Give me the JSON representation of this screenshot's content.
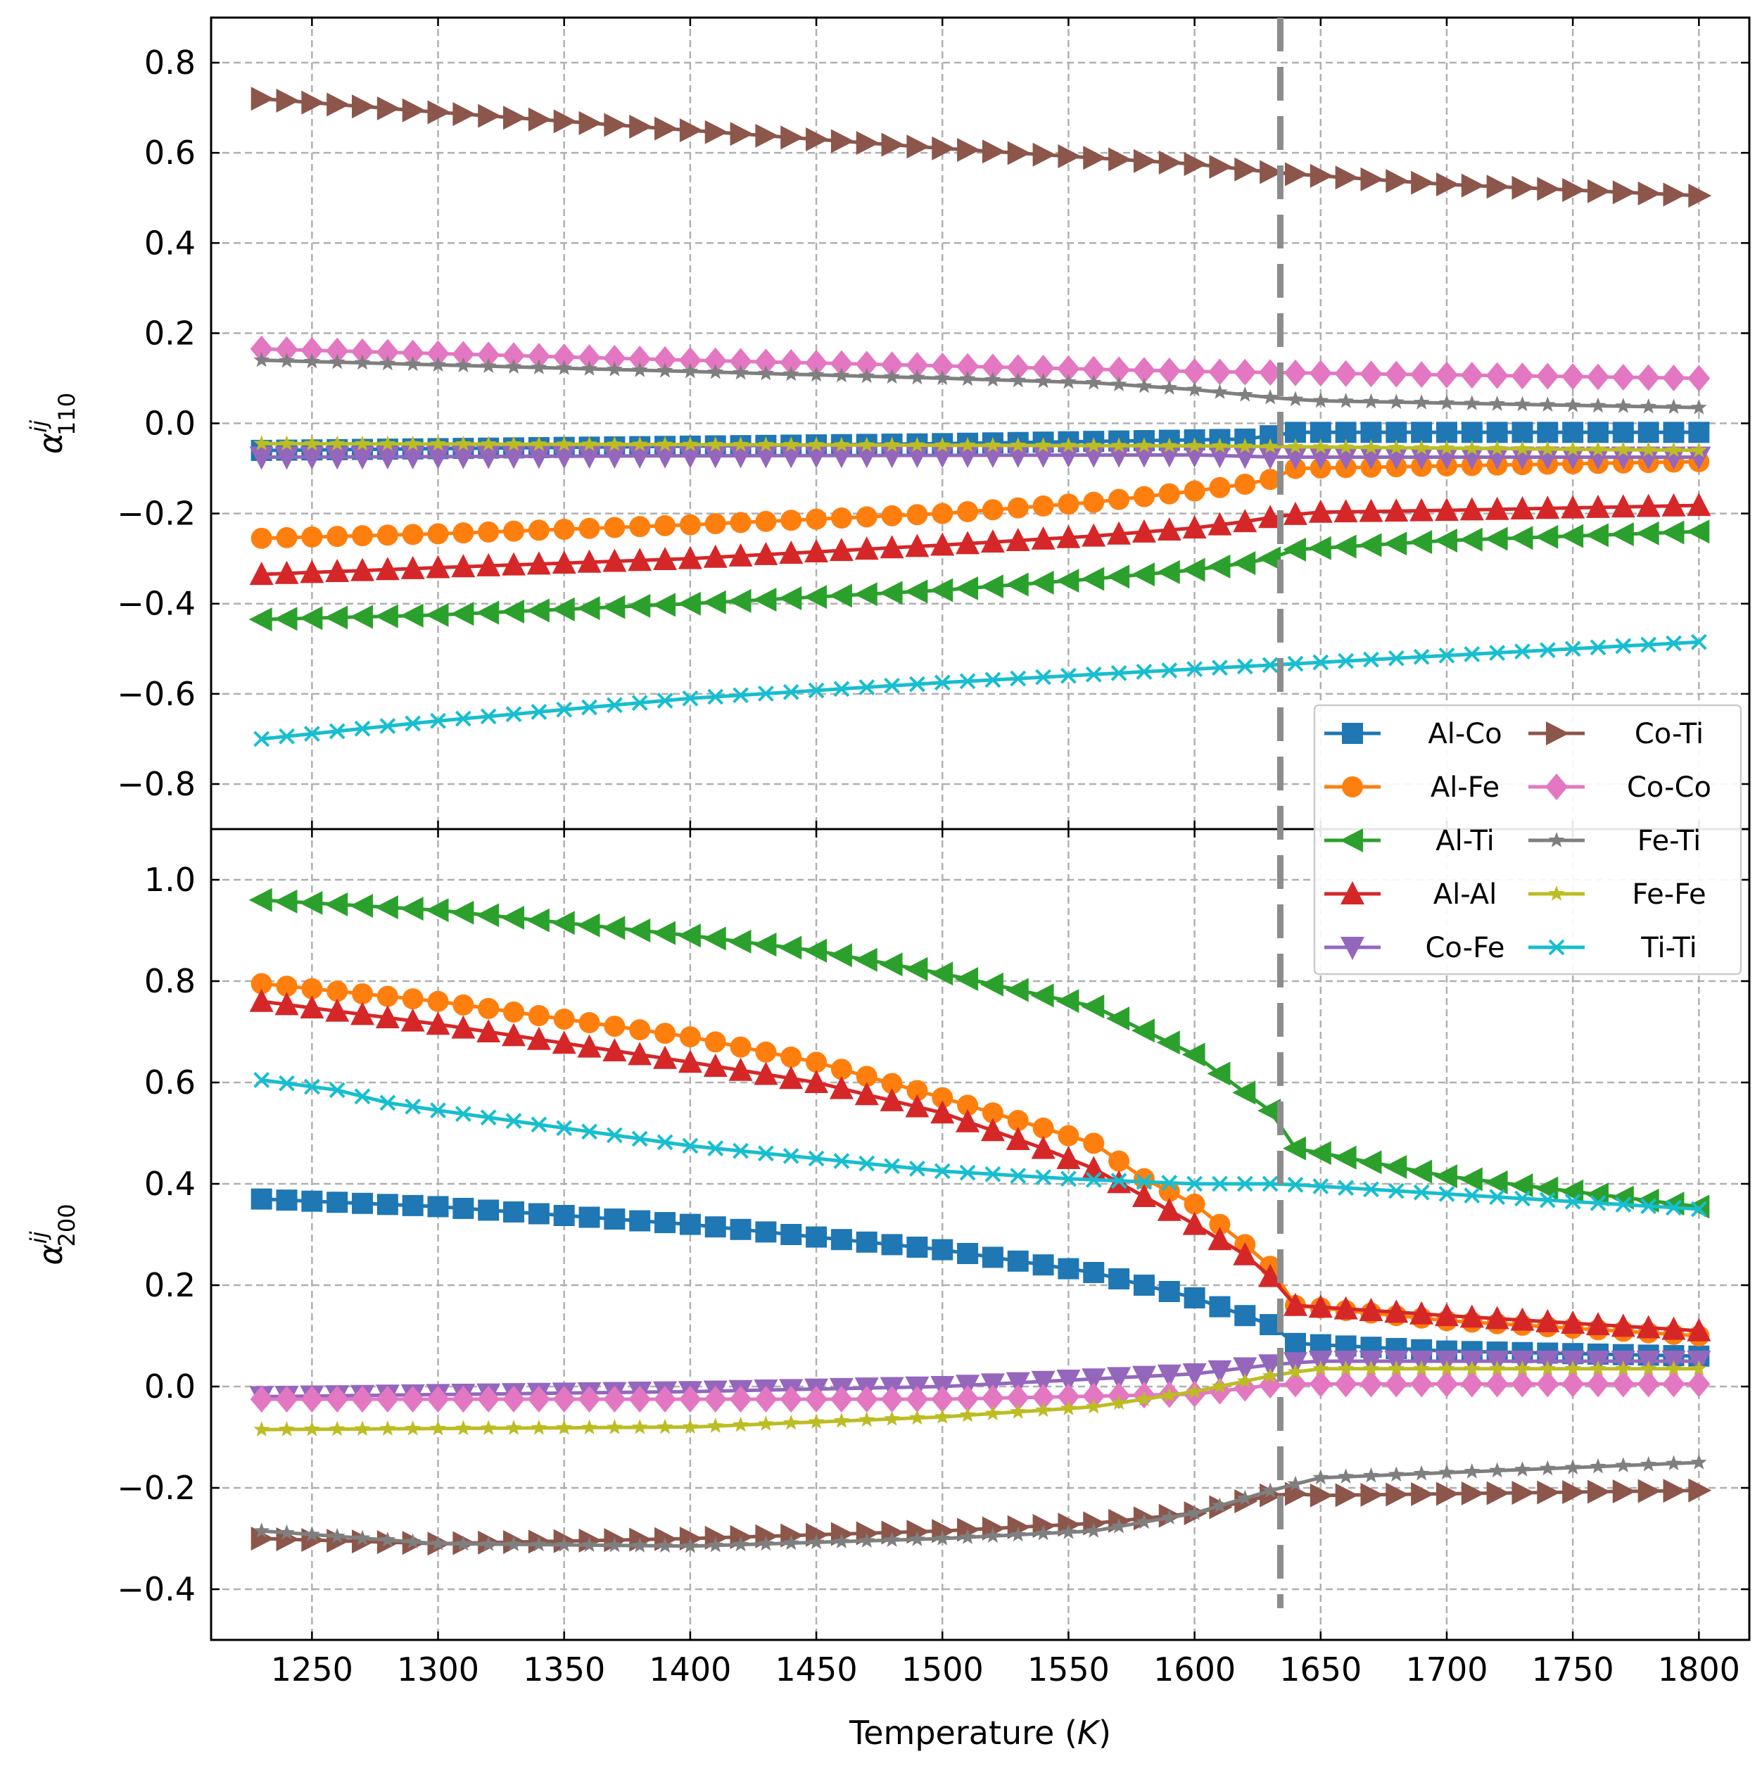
{
  "chart_data": [
    {
      "type": "line",
      "panel": "top",
      "ylabel_symbol": "α",
      "ylabel_sup": "ij",
      "ylabel_sub": "110",
      "xlim": [
        1210,
        1820
      ],
      "ylim": [
        -0.9,
        0.9
      ],
      "yticks": [
        "0.8",
        "0.6",
        "0.4",
        "0.2",
        "0.0",
        "−0.2",
        "−0.4",
        "−0.6",
        "−0.8"
      ],
      "ytick_values": [
        0.8,
        0.6,
        0.4,
        0.2,
        0.0,
        -0.2,
        -0.4,
        -0.6,
        -0.8
      ],
      "grid": true,
      "legend_placement": "bottom-right",
      "vline_x": 1634,
      "series": [
        {
          "name": "Al-Co",
          "points": [
            [
              1230,
              -0.06
            ],
            [
              1500,
              -0.045
            ],
            [
              1620,
              -0.035
            ],
            [
              1640,
              -0.02
            ],
            [
              1800,
              -0.02
            ]
          ]
        },
        {
          "name": "Al-Fe",
          "points": [
            [
              1230,
              -0.255
            ],
            [
              1300,
              -0.245
            ],
            [
              1400,
              -0.225
            ],
            [
              1500,
              -0.2
            ],
            [
              1560,
              -0.175
            ],
            [
              1600,
              -0.15
            ],
            [
              1620,
              -0.135
            ],
            [
              1634,
              -0.12
            ],
            [
              1640,
              -0.1
            ],
            [
              1800,
              -0.085
            ]
          ]
        },
        {
          "name": "Al-Ti",
          "points": [
            [
              1230,
              -0.435
            ],
            [
              1300,
              -0.425
            ],
            [
              1400,
              -0.4
            ],
            [
              1500,
              -0.37
            ],
            [
              1560,
              -0.345
            ],
            [
              1600,
              -0.325
            ],
            [
              1620,
              -0.31
            ],
            [
              1634,
              -0.295
            ],
            [
              1640,
              -0.28
            ],
            [
              1700,
              -0.26
            ],
            [
              1800,
              -0.24
            ]
          ]
        },
        {
          "name": "Al-Al",
          "points": [
            [
              1230,
              -0.335
            ],
            [
              1300,
              -0.32
            ],
            [
              1400,
              -0.3
            ],
            [
              1500,
              -0.27
            ],
            [
              1560,
              -0.25
            ],
            [
              1600,
              -0.232
            ],
            [
              1620,
              -0.218
            ],
            [
              1634,
              -0.205
            ],
            [
              1650,
              -0.197
            ],
            [
              1700,
              -0.193
            ],
            [
              1800,
              -0.182
            ]
          ]
        },
        {
          "name": "Co-Fe",
          "points": [
            [
              1230,
              -0.075
            ],
            [
              1400,
              -0.072
            ],
            [
              1600,
              -0.07
            ],
            [
              1634,
              -0.075
            ],
            [
              1700,
              -0.075
            ],
            [
              1800,
              -0.075
            ]
          ]
        },
        {
          "name": "Co-Ti",
          "points": [
            [
              1230,
              0.72
            ],
            [
              1300,
              0.69
            ],
            [
              1400,
              0.65
            ],
            [
              1500,
              0.61
            ],
            [
              1600,
              0.575
            ],
            [
              1634,
              0.555
            ],
            [
              1700,
              0.53
            ],
            [
              1800,
              0.505
            ]
          ]
        },
        {
          "name": "Co-Co",
          "points": [
            [
              1230,
              0.165
            ],
            [
              1400,
              0.14
            ],
            [
              1600,
              0.115
            ],
            [
              1800,
              0.1
            ]
          ]
        },
        {
          "name": "Fe-Ti",
          "points": [
            [
              1230,
              0.14
            ],
            [
              1400,
              0.115
            ],
            [
              1500,
              0.1
            ],
            [
              1560,
              0.09
            ],
            [
              1600,
              0.075
            ],
            [
              1634,
              0.055
            ],
            [
              1650,
              0.05
            ],
            [
              1800,
              0.035
            ]
          ]
        },
        {
          "name": "Fe-Fe",
          "points": [
            [
              1230,
              -0.045
            ],
            [
              1400,
              -0.047
            ],
            [
              1600,
              -0.05
            ],
            [
              1800,
              -0.06
            ]
          ]
        },
        {
          "name": "Ti-Ti",
          "points": [
            [
              1230,
              -0.7
            ],
            [
              1300,
              -0.66
            ],
            [
              1400,
              -0.61
            ],
            [
              1500,
              -0.575
            ],
            [
              1600,
              -0.545
            ],
            [
              1634,
              -0.535
            ],
            [
              1700,
              -0.515
            ],
            [
              1800,
              -0.485
            ]
          ]
        }
      ]
    },
    {
      "type": "line",
      "panel": "bottom",
      "ylabel_symbol": "α",
      "ylabel_sup": "ij",
      "ylabel_sub": "200",
      "xlabel_main": "Temperature (",
      "xlabel_unit": "K",
      "xlabel_close": ")",
      "xlim": [
        1210,
        1820
      ],
      "ylim": [
        -0.5,
        1.1
      ],
      "xticks": [
        "1250",
        "1300",
        "1350",
        "1400",
        "1450",
        "1500",
        "1550",
        "1600",
        "1650",
        "1700",
        "1750",
        "1800"
      ],
      "xtick_values": [
        1250,
        1300,
        1350,
        1400,
        1450,
        1500,
        1550,
        1600,
        1650,
        1700,
        1750,
        1800
      ],
      "yticks": [
        "1.0",
        "0.8",
        "0.6",
        "0.4",
        "0.2",
        "0.0",
        "−0.2",
        "−0.4"
      ],
      "ytick_values": [
        1.0,
        0.8,
        0.6,
        0.4,
        0.2,
        0.0,
        -0.2,
        -0.4
      ],
      "grid": true,
      "vline_x": 1634,
      "series": [
        {
          "name": "Al-Co",
          "points": [
            [
              1230,
              0.37
            ],
            [
              1300,
              0.355
            ],
            [
              1400,
              0.32
            ],
            [
              1500,
              0.27
            ],
            [
              1560,
              0.225
            ],
            [
              1600,
              0.175
            ],
            [
              1620,
              0.14
            ],
            [
              1634,
              0.115
            ],
            [
              1640,
              0.085
            ],
            [
              1700,
              0.07
            ],
            [
              1800,
              0.06
            ]
          ]
        },
        {
          "name": "Al-Fe",
          "points": [
            [
              1230,
              0.795
            ],
            [
              1300,
              0.76
            ],
            [
              1400,
              0.69
            ],
            [
              1450,
              0.64
            ],
            [
              1500,
              0.57
            ],
            [
              1540,
              0.51
            ],
            [
              1560,
              0.48
            ],
            [
              1580,
              0.41
            ],
            [
              1600,
              0.36
            ],
            [
              1620,
              0.28
            ],
            [
              1634,
              0.22
            ],
            [
              1640,
              0.16
            ],
            [
              1700,
              0.13
            ],
            [
              1800,
              0.1
            ]
          ]
        },
        {
          "name": "Al-Ti",
          "points": [
            [
              1230,
              0.96
            ],
            [
              1300,
              0.94
            ],
            [
              1400,
              0.89
            ],
            [
              1450,
              0.86
            ],
            [
              1500,
              0.815
            ],
            [
              1560,
              0.75
            ],
            [
              1600,
              0.655
            ],
            [
              1620,
              0.58
            ],
            [
              1634,
              0.53
            ],
            [
              1640,
              0.47
            ],
            [
              1700,
              0.415
            ],
            [
              1750,
              0.385
            ],
            [
              1800,
              0.355
            ]
          ]
        },
        {
          "name": "Al-Al",
          "points": [
            [
              1230,
              0.76
            ],
            [
              1300,
              0.715
            ],
            [
              1400,
              0.64
            ],
            [
              1450,
              0.6
            ],
            [
              1500,
              0.54
            ],
            [
              1540,
              0.47
            ],
            [
              1560,
              0.43
            ],
            [
              1600,
              0.32
            ],
            [
              1620,
              0.26
            ],
            [
              1634,
              0.2
            ],
            [
              1640,
              0.16
            ],
            [
              1700,
              0.14
            ],
            [
              1800,
              0.11
            ]
          ]
        },
        {
          "name": "Co-Fe",
          "points": [
            [
              1230,
              -0.02
            ],
            [
              1400,
              -0.01
            ],
            [
              1500,
              0.0
            ],
            [
              1600,
              0.025
            ],
            [
              1634,
              0.045
            ],
            [
              1650,
              0.05
            ],
            [
              1800,
              0.05
            ]
          ]
        },
        {
          "name": "Co-Ti",
          "points": [
            [
              1230,
              -0.3
            ],
            [
              1300,
              -0.31
            ],
            [
              1400,
              -0.3
            ],
            [
              1500,
              -0.285
            ],
            [
              1560,
              -0.27
            ],
            [
              1600,
              -0.25
            ],
            [
              1634,
              -0.21
            ],
            [
              1650,
              -0.215
            ],
            [
              1800,
              -0.205
            ]
          ]
        },
        {
          "name": "Co-Co",
          "points": [
            [
              1230,
              -0.025
            ],
            [
              1400,
              -0.025
            ],
            [
              1500,
              -0.025
            ],
            [
              1600,
              -0.015
            ],
            [
              1634,
              0.005
            ],
            [
              1800,
              0.005
            ]
          ]
        },
        {
          "name": "Fe-Ti",
          "points": [
            [
              1230,
              -0.285
            ],
            [
              1300,
              -0.31
            ],
            [
              1400,
              -0.315
            ],
            [
              1500,
              -0.3
            ],
            [
              1560,
              -0.285
            ],
            [
              1600,
              -0.25
            ],
            [
              1634,
              -0.2
            ],
            [
              1650,
              -0.18
            ],
            [
              1700,
              -0.17
            ],
            [
              1800,
              -0.15
            ]
          ]
        },
        {
          "name": "Fe-Fe",
          "points": [
            [
              1230,
              -0.085
            ],
            [
              1400,
              -0.08
            ],
            [
              1500,
              -0.06
            ],
            [
              1560,
              -0.04
            ],
            [
              1600,
              -0.01
            ],
            [
              1634,
              0.025
            ],
            [
              1650,
              0.035
            ],
            [
              1800,
              0.035
            ]
          ]
        },
        {
          "name": "Ti-Ti",
          "points": [
            [
              1230,
              0.605
            ],
            [
              1260,
              0.585
            ],
            [
              1280,
              0.56
            ],
            [
              1300,
              0.545
            ],
            [
              1350,
              0.51
            ],
            [
              1400,
              0.475
            ],
            [
              1450,
              0.45
            ],
            [
              1500,
              0.425
            ],
            [
              1550,
              0.41
            ],
            [
              1600,
              0.4
            ],
            [
              1634,
              0.4
            ],
            [
              1700,
              0.38
            ],
            [
              1800,
              0.35
            ]
          ]
        }
      ]
    }
  ],
  "legend": [
    {
      "name": "Al-Co",
      "color": "#1f77b4",
      "marker": "square"
    },
    {
      "name": "Al-Fe",
      "color": "#ff7f0e",
      "marker": "circle"
    },
    {
      "name": "Al-Ti",
      "color": "#2ca02c",
      "marker": "triangle-left"
    },
    {
      "name": "Al-Al",
      "color": "#d62728",
      "marker": "triangle-up"
    },
    {
      "name": "Co-Fe",
      "color": "#9467bd",
      "marker": "triangle-down"
    },
    {
      "name": "Co-Ti",
      "color": "#8c564b",
      "marker": "triangle-right"
    },
    {
      "name": "Co-Co",
      "color": "#e377c2",
      "marker": "diamond"
    },
    {
      "name": "Fe-Ti",
      "color": "#7f7f7f",
      "marker": "star"
    },
    {
      "name": "Fe-Fe",
      "color": "#bcbd22",
      "marker": "star"
    },
    {
      "name": "Ti-Ti",
      "color": "#17becf",
      "marker": "x"
    }
  ],
  "colors": {
    "vline": "#8c8c8c",
    "grid": "#b0b0b0"
  }
}
